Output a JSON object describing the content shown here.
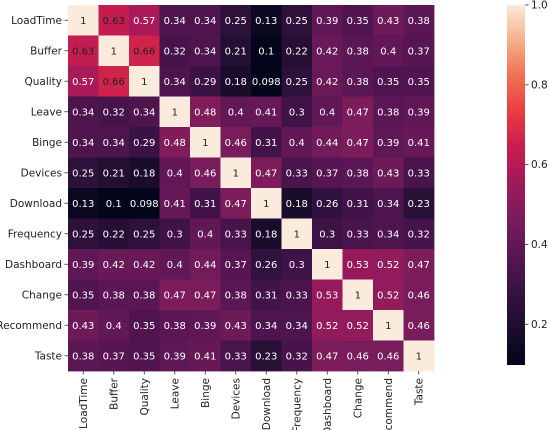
{
  "chart_data": {
    "type": "heatmap",
    "title": "",
    "xlabel": "",
    "ylabel": "",
    "labels": [
      "LoadTime",
      "Buffer",
      "Quality",
      "Leave",
      "Binge",
      "Devices",
      "Download",
      "Frequency",
      "Dashboard",
      "Change",
      "Recommend",
      "Taste"
    ],
    "matrix": [
      [
        1,
        0.63,
        0.57,
        0.34,
        0.34,
        0.25,
        0.13,
        0.25,
        0.39,
        0.35,
        0.43,
        0.38
      ],
      [
        0.63,
        1,
        0.66,
        0.32,
        0.34,
        0.21,
        0.1,
        0.22,
        0.42,
        0.38,
        0.4,
        0.37
      ],
      [
        0.57,
        0.66,
        1,
        0.34,
        0.29,
        0.18,
        0.098,
        0.25,
        0.42,
        0.38,
        0.35,
        0.35
      ],
      [
        0.34,
        0.32,
        0.34,
        1,
        0.48,
        0.4,
        0.41,
        0.3,
        0.4,
        0.47,
        0.38,
        0.39
      ],
      [
        0.34,
        0.34,
        0.29,
        0.48,
        1,
        0.46,
        0.31,
        0.4,
        0.44,
        0.47,
        0.39,
        0.41
      ],
      [
        0.25,
        0.21,
        0.18,
        0.4,
        0.46,
        1,
        0.47,
        0.33,
        0.37,
        0.38,
        0.43,
        0.33
      ],
      [
        0.13,
        0.1,
        0.098,
        0.41,
        0.31,
        0.47,
        1,
        0.18,
        0.26,
        0.31,
        0.34,
        0.23
      ],
      [
        0.25,
        0.22,
        0.25,
        0.3,
        0.4,
        0.33,
        0.18,
        1,
        0.3,
        0.33,
        0.34,
        0.32
      ],
      [
        0.39,
        0.42,
        0.42,
        0.4,
        0.44,
        0.37,
        0.26,
        0.3,
        1,
        0.53,
        0.52,
        0.47
      ],
      [
        0.35,
        0.38,
        0.38,
        0.47,
        0.47,
        0.38,
        0.31,
        0.33,
        0.53,
        1,
        0.52,
        0.46
      ],
      [
        0.43,
        0.4,
        0.35,
        0.38,
        0.39,
        0.43,
        0.34,
        0.34,
        0.52,
        0.52,
        1,
        0.46
      ],
      [
        0.38,
        0.37,
        0.35,
        0.39,
        0.41,
        0.33,
        0.23,
        0.32,
        0.47,
        0.46,
        0.46,
        1
      ]
    ],
    "colorbar": {
      "range": [
        0.098,
        1
      ],
      "ticks": [
        "0.2",
        "0.4",
        "0.6",
        "0.8",
        "1.0"
      ],
      "tick_values": [
        0.2,
        0.4,
        0.6,
        0.8,
        1.0
      ]
    },
    "colormap": "rocket",
    "light_text_below": 0.6
  }
}
